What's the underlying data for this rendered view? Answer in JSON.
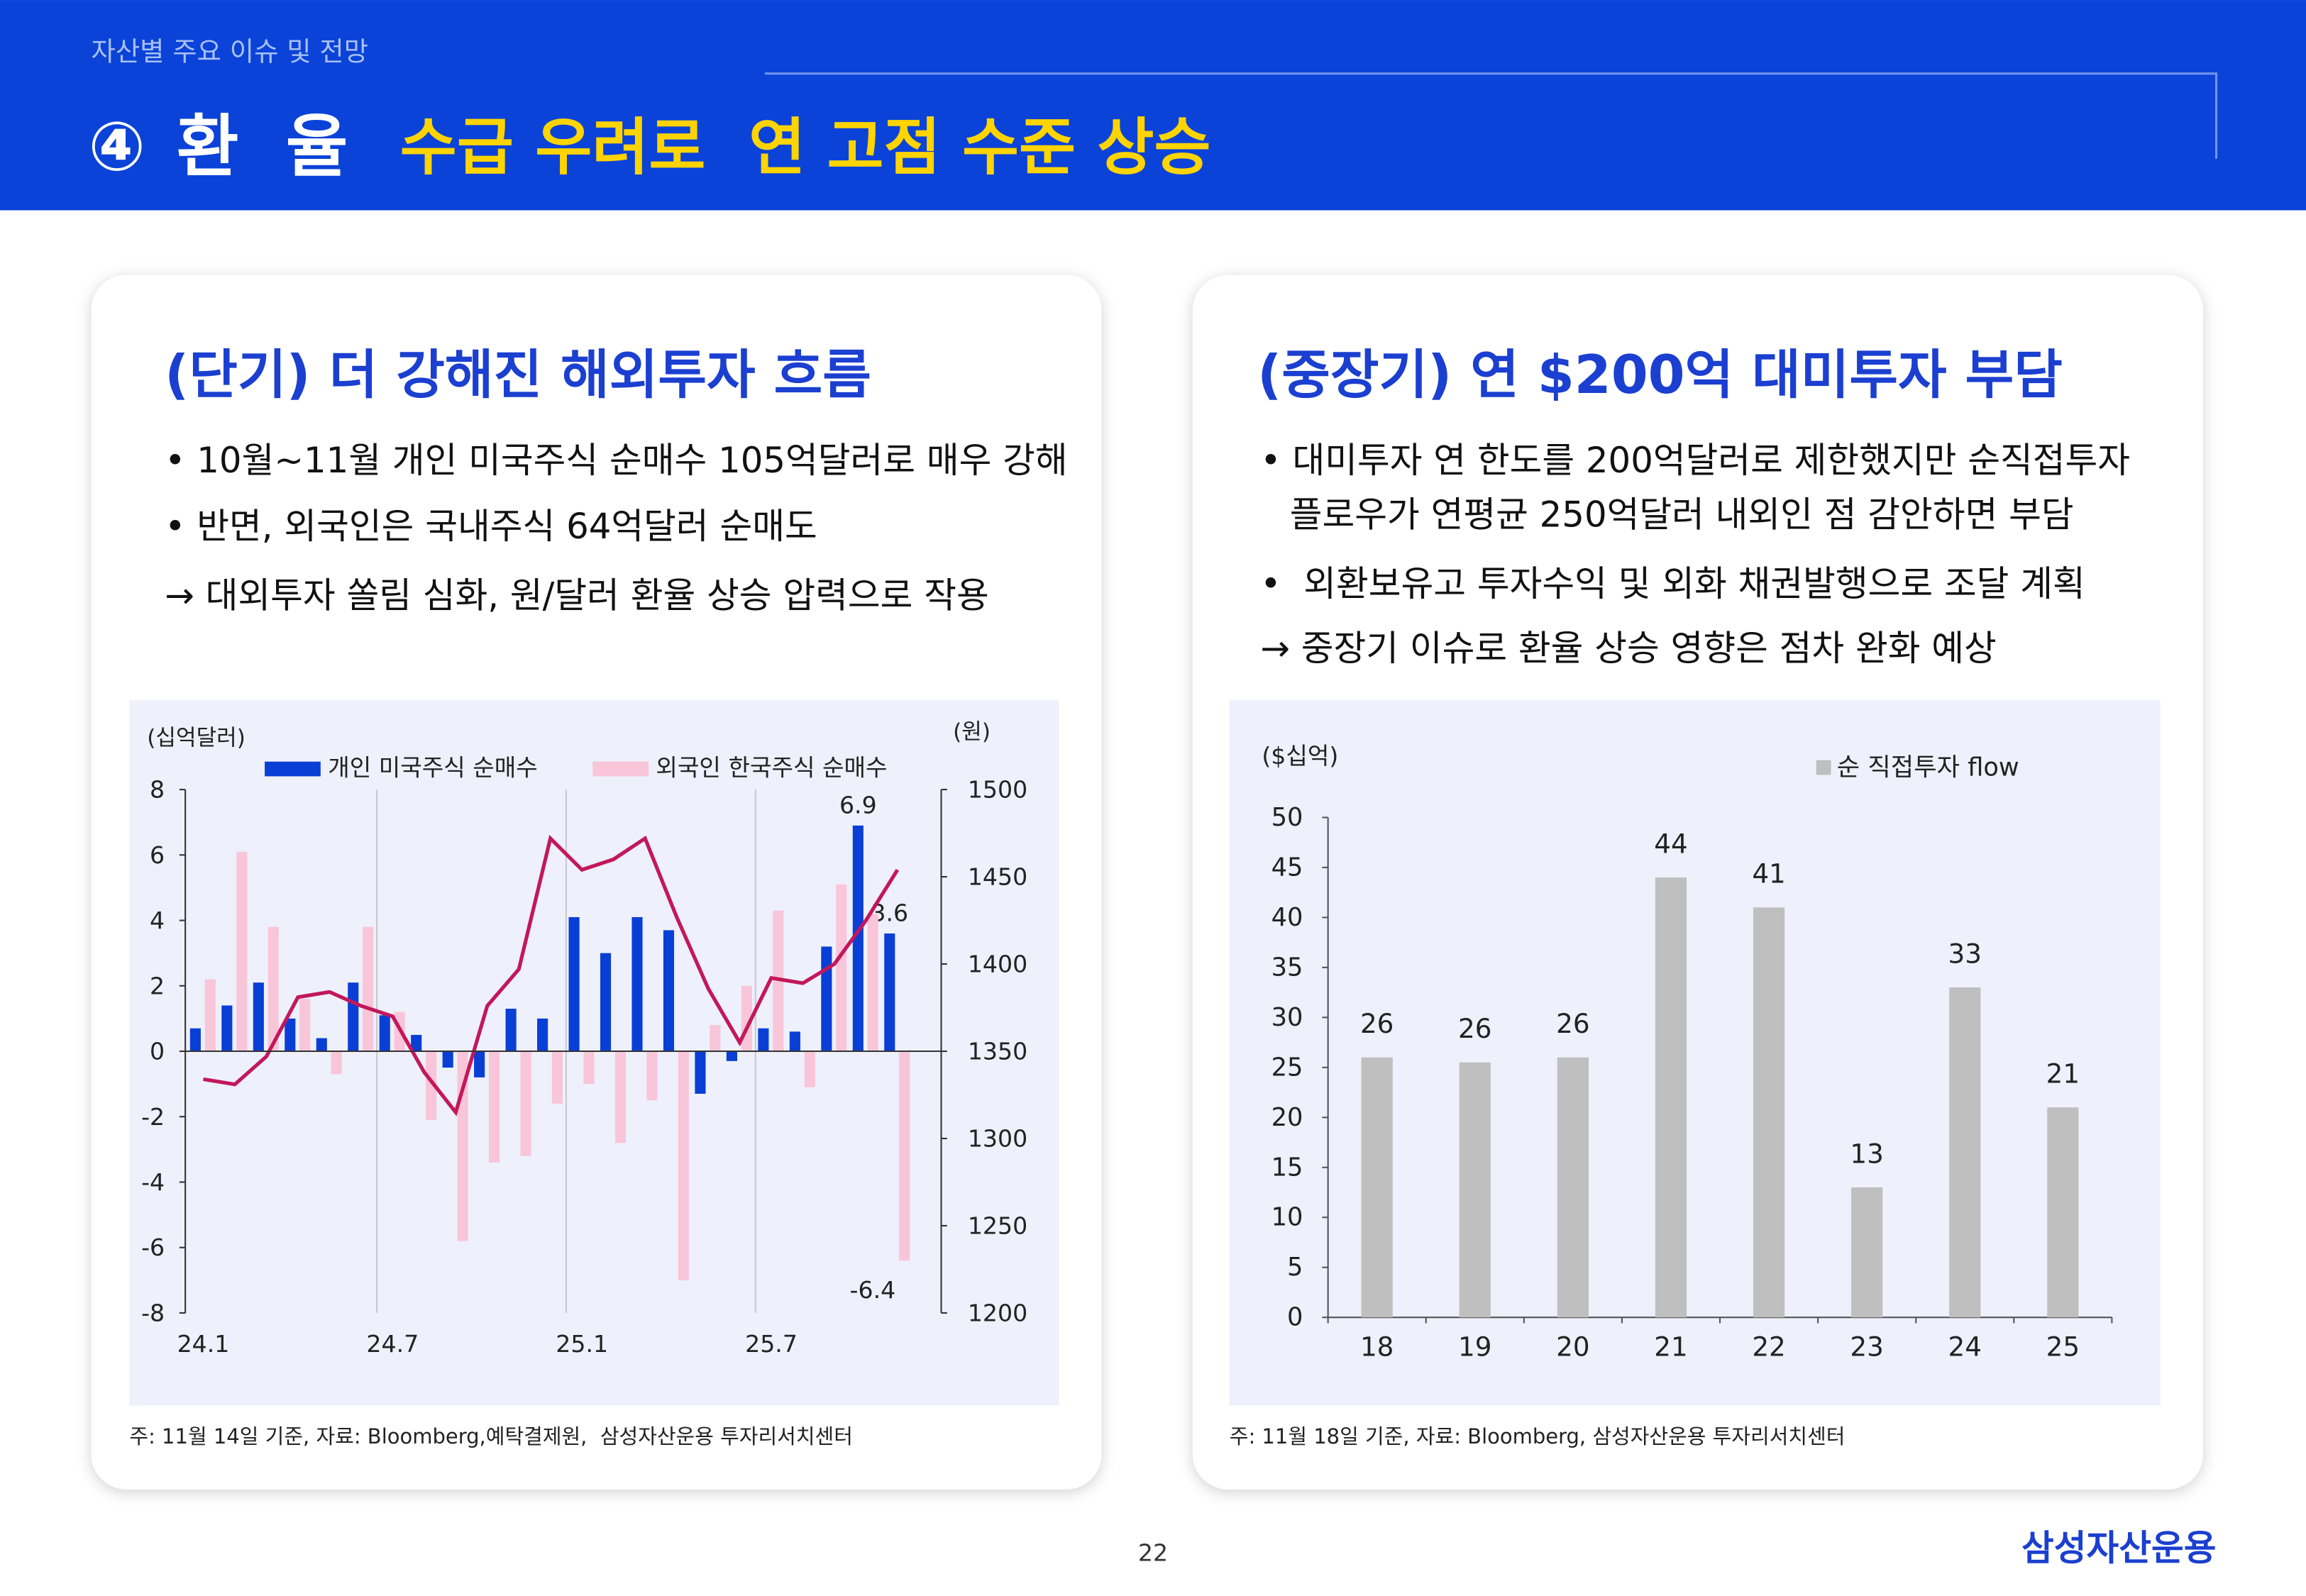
{
  "header": {
    "section": "자산별 주요 이슈 및 전망",
    "number": "④",
    "topic": "환  율",
    "headline": "수급 우려로  연 고점 수준 상승"
  },
  "panels": [
    {
      "heading": "(단기) 더 강해진 해외투자 흐름",
      "bullets": [
        "• 10월~11월 개인 미국주식 순매수 105억달러로 매우 강해",
        "• 반면, 외국인은 국내주식 64억달러 순매도",
        "→ 대외투자 쏠림 심화, 원/달러 환율 상승 압력으로 작용"
      ],
      "footnote": "주: 11월 14일 기준, 자료: Bloomberg,예탁결제원,  삼성자산운용 투자리서치센터"
    },
    {
      "heading": "(중장기) 연 $200억 대미투자 부담",
      "bullets": [
        "• 대미투자 연 한도를 200억달러로 제한했지만 순직접투자",
        "플로우가 연평균 250억달러 내외인 점 감안하면 부담",
        "•  외환보유고 투자수익 및 외화 채권발행으로 조달 계획",
        "→ 중장기 이슈로 환율 상승 영향은 점차 완화 예상"
      ],
      "footnote": "주: 11월 18일 기준, 자료: Bloomberg, 삼성자산운용 투자리서치센터"
    }
  ],
  "page_number": "22",
  "brand": "삼성자산운용",
  "chart_data": [
    {
      "type": "combo",
      "y_unit": "(십억달러)",
      "y2_unit": "(원)",
      "categories": [
        "24.1",
        null,
        null,
        null,
        null,
        null,
        "24.7",
        null,
        null,
        null,
        null,
        null,
        "25.1",
        null,
        null,
        null,
        null,
        null,
        "25.7",
        null,
        null,
        null,
        null
      ],
      "series": [
        {
          "name": "개인 미국주식 순매수",
          "type": "bar",
          "color": "#0a3fd6",
          "axis": "y",
          "values": [
            0.7,
            1.4,
            2.1,
            1.0,
            0.4,
            2.1,
            1.1,
            0.5,
            -0.5,
            -0.8,
            1.3,
            1.0,
            4.1,
            3.0,
            4.1,
            3.7,
            -1.3,
            -0.3,
            0.7,
            0.6,
            3.2,
            6.9,
            3.6
          ],
          "labeled": [
            21,
            22
          ]
        },
        {
          "name": "외국인 한국주식 순매수",
          "type": "bar",
          "color": "#f8c6d8",
          "axis": "y",
          "values": [
            2.2,
            6.1,
            3.8,
            1.6,
            -0.7,
            3.8,
            1.2,
            -2.1,
            -5.8,
            -3.4,
            -3.2,
            -1.6,
            -1.0,
            -2.8,
            -1.5,
            -7.0,
            0.8,
            2.0,
            4.3,
            -1.1,
            5.1,
            4.2,
            -6.4
          ],
          "labeled": [
            22
          ]
        },
        {
          "type": "line",
          "color": "#c2185b",
          "axis": "y2",
          "values": [
            1334,
            1331,
            1347,
            1381,
            1384,
            1376,
            1370,
            1338,
            1315,
            1376,
            1397,
            1472,
            1454,
            1460,
            1472,
            1427,
            1386,
            1355,
            1392,
            1389,
            1400,
            1425,
            1454
          ]
        }
      ],
      "ylim": [
        -8,
        8
      ],
      "yticks": [
        -8,
        -6,
        -4,
        -2,
        0,
        2,
        4,
        6,
        8
      ],
      "y2lim": [
        1200,
        1500
      ],
      "y2ticks": [
        1200,
        1250,
        1300,
        1350,
        1400,
        1450,
        1500
      ],
      "grid": "x"
    },
    {
      "type": "bar",
      "y_unit": "($십억)",
      "categories": [
        "18",
        "19",
        "20",
        "21",
        "22",
        "23",
        "24",
        "25"
      ],
      "series": [
        {
          "name": "순 직접투자 flow",
          "color": "#bfbfbf",
          "values": [
            26,
            25.5,
            26,
            44,
            41,
            13,
            33,
            21
          ],
          "value_labels": [
            "26",
            "26",
            "26",
            "44",
            "41",
            "13",
            "33",
            "21"
          ]
        }
      ],
      "ylim": [
        0,
        50
      ],
      "yticks": [
        0,
        5,
        10,
        15,
        20,
        25,
        30,
        35,
        40,
        45,
        50
      ]
    }
  ]
}
